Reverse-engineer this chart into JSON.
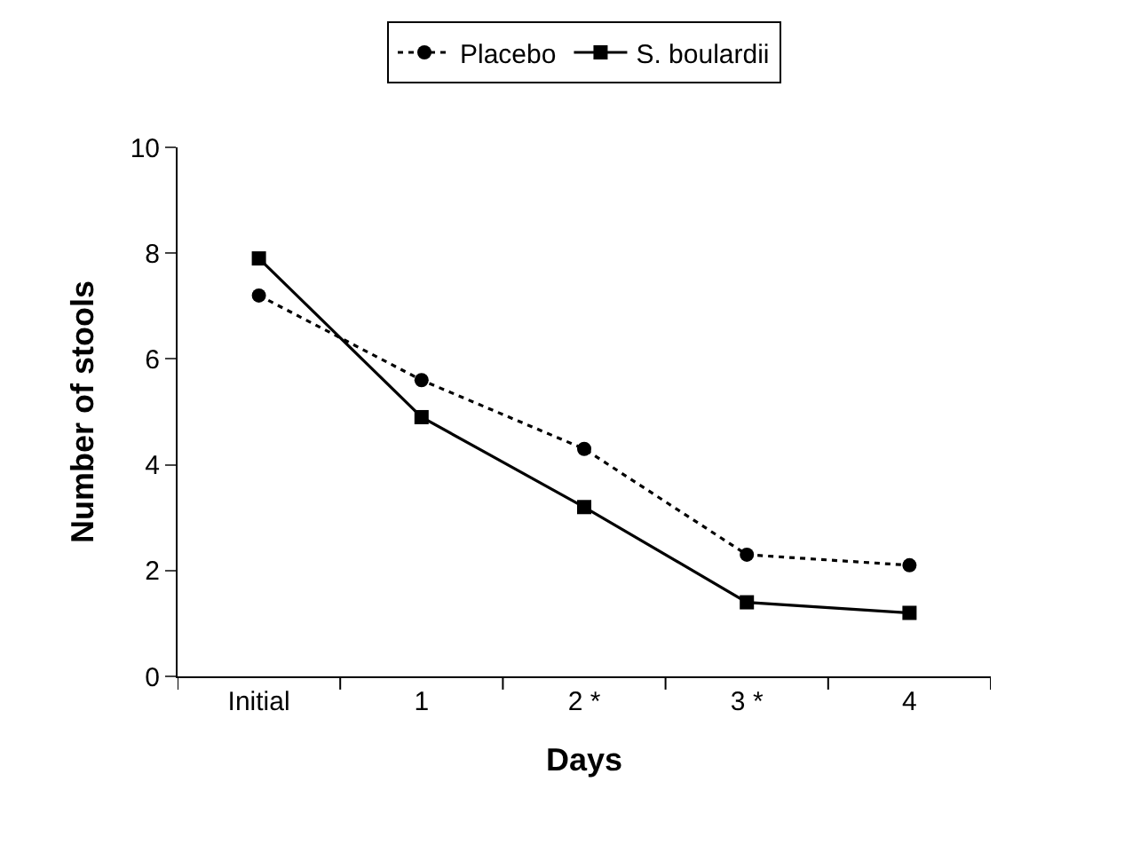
{
  "chart_data": {
    "type": "line",
    "xlabel": "Days",
    "ylabel": "Number of stools",
    "categories": [
      "Initial",
      "1",
      "2 *",
      "3 *",
      "4"
    ],
    "series": [
      {
        "name": "Placebo",
        "color": "#000000",
        "marker": "circle",
        "line_style": "dotted",
        "values": [
          7.2,
          5.6,
          4.3,
          2.3,
          2.1
        ]
      },
      {
        "name": "S. boulardii",
        "color": "#000000",
        "marker": "square",
        "line_style": "solid",
        "values": [
          7.9,
          4.9,
          3.2,
          1.4,
          1.2
        ]
      }
    ],
    "ylim": [
      0,
      10
    ],
    "yticks": [
      0,
      2,
      4,
      6,
      8,
      10
    ],
    "grid": false,
    "legend": "top"
  }
}
